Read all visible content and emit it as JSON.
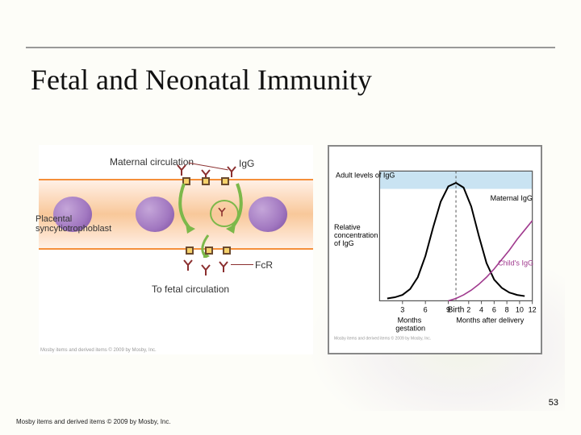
{
  "title": "Fetal and Neonatal Immunity",
  "page_number": "53",
  "footer": "Mosby items and derived items © 2009 by Mosby, Inc.",
  "left_diagram": {
    "label_maternal": "Maternal circulation",
    "label_igg": "IgG",
    "label_placental": "Placental syncytiotrophoblast",
    "label_fcr": "FcR",
    "label_fetal": "To fetal circulation",
    "copytext": "Mosby items and derived items © 2009 by Mosby, Inc.",
    "colors": {
      "band_border": "#f58f3a",
      "cell_fill": "#a177c0",
      "arrow": "#7cb84a",
      "antibody": "#8b2f2f",
      "receptor_fill": "#f5d26b",
      "receptor_border": "#6b4a2f"
    }
  },
  "right_chart": {
    "y_top_label": "Adult levels of IgG",
    "y_label_line1": "Relative",
    "y_label_line2": "concentration",
    "y_label_line3": "of IgG",
    "series": {
      "maternal": {
        "label": "Maternal IgG",
        "color": "#000000",
        "points_x": [
          1,
          2,
          3,
          4,
          5,
          6,
          7,
          8,
          9,
          10,
          11,
          12,
          13,
          14,
          15,
          16,
          17,
          18,
          19
        ],
        "points_y": [
          2,
          3,
          5,
          10,
          20,
          38,
          62,
          84,
          97,
          100,
          96,
          80,
          55,
          32,
          18,
          11,
          7,
          5,
          4
        ]
      },
      "child": {
        "label": "Child's IgG",
        "color": "#a03a8e",
        "points_x": [
          9,
          10,
          11,
          12,
          13,
          14,
          15,
          16,
          17,
          18,
          19,
          20
        ],
        "points_y": [
          0,
          2,
          5,
          9,
          14,
          20,
          27,
          35,
          43,
          52,
          60,
          68
        ]
      }
    },
    "x_ticks_left": [
      "3",
      "6",
      "9"
    ],
    "x_ticks_right": [
      "2",
      "4",
      "6",
      "8",
      "10",
      "12"
    ],
    "x_center_label": "Birth",
    "x_left_caption_line1": "Months",
    "x_left_caption_line2": "gestation",
    "x_right_caption": "Months after delivery",
    "adult_band_color": "#c9e3f2",
    "frame_color": "#555555",
    "grid_type": "none",
    "ylim": [
      0,
      110
    ],
    "xlim": [
      0,
      20
    ],
    "birth_x": 10,
    "copytext": "Mosby items and derived items © 2009 by Mosby, Inc."
  }
}
